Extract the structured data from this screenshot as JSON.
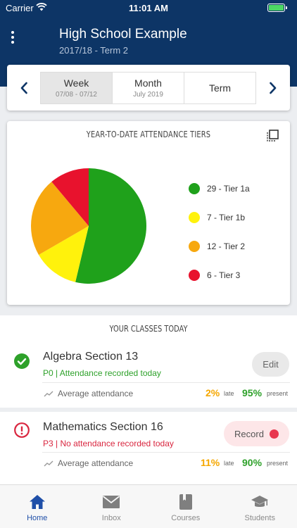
{
  "status_bar": {
    "carrier": "Carrier",
    "time": "11:01 AM"
  },
  "header": {
    "school_name": "High School Example",
    "term": "2017/18 - Term 2"
  },
  "period_selector": {
    "segments": [
      {
        "label": "Week",
        "sub": "07/08 - 07/12",
        "active": true
      },
      {
        "label": "Month",
        "sub": "July 2019",
        "active": false
      },
      {
        "label": "Term",
        "sub": "",
        "active": false
      }
    ]
  },
  "attendance_chart": {
    "title": "YEAR-TO-DATE ATTENDANCE TIERS",
    "legend": [
      {
        "label": "29 - Tier 1a",
        "color": "#1fa11b"
      },
      {
        "label": "7 - Tier 1b",
        "color": "#fff20c"
      },
      {
        "label": "12 - Tier 2",
        "color": "#f7a80f"
      },
      {
        "label": "6 - Tier 3",
        "color": "#e8122d"
      }
    ]
  },
  "chart_data": {
    "type": "pie",
    "title": "YEAR-TO-DATE ATTENDANCE TIERS",
    "categories": [
      "Tier 1a",
      "Tier 1b",
      "Tier 2",
      "Tier 3"
    ],
    "values": [
      29,
      7,
      12,
      6
    ],
    "colors": [
      "#1fa11b",
      "#fff20c",
      "#f7a80f",
      "#e8122d"
    ],
    "legend_position": "right"
  },
  "classes": {
    "title": "YOUR CLASSES TODAY",
    "items": [
      {
        "name": "Algebra Section 13",
        "subtitle": "P0 | Attendance recorded today",
        "status": "recorded",
        "action_label": "Edit",
        "stats_label": "Average attendance",
        "late_value": "2%",
        "late_label": "late",
        "present_value": "95%",
        "present_label": "present"
      },
      {
        "name": "Mathematics Section 16",
        "subtitle": "P3 | No attendance recorded today",
        "status": "not-recorded",
        "action_label": "Record",
        "stats_label": "Average attendance",
        "late_value": "11%",
        "late_label": "late",
        "present_value": "90%",
        "present_label": "present"
      }
    ]
  },
  "tab_bar": {
    "tabs": [
      {
        "label": "Home",
        "icon": "home-icon",
        "active": true
      },
      {
        "label": "Inbox",
        "icon": "mail-icon",
        "active": false
      },
      {
        "label": "Courses",
        "icon": "book-icon",
        "active": false
      },
      {
        "label": "Students",
        "icon": "graduation-cap-icon",
        "active": false
      }
    ]
  },
  "colors": {
    "header_bg": "#0d3566",
    "active_tab": "#1f4fa8",
    "recorded_green": "#2ea12a",
    "not_recorded_red": "#d9263f",
    "late_orange": "#f5a700"
  }
}
